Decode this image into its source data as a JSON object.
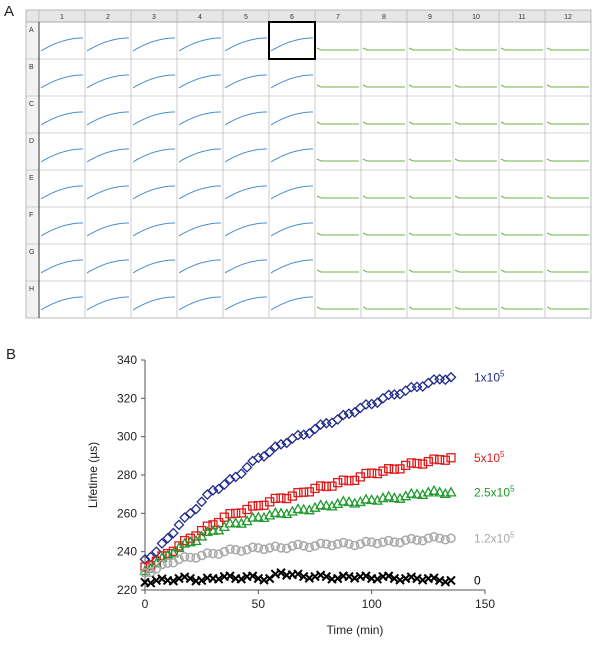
{
  "panel_labels": {
    "a": "A",
    "b": "B"
  },
  "plate": {
    "columns": [
      "1",
      "2",
      "3",
      "4",
      "5",
      "6",
      "7",
      "8",
      "9",
      "10",
      "11",
      "12"
    ],
    "rows": [
      "A",
      "B",
      "C",
      "D",
      "E",
      "F",
      "G",
      "H"
    ],
    "blue_columns_count": 6,
    "selected_well": "A6",
    "colors": {
      "blue_trace": "#4a8fd0",
      "green_trace": "#6db346",
      "header_bg": "#e6e6e6",
      "grid": "#aaaaaa"
    }
  },
  "chart_data": {
    "type": "scatter",
    "xlabel": "Time (min)",
    "ylabel": "Lifetime (µs)",
    "xlim": [
      0,
      150
    ],
    "ylim": [
      220,
      340
    ],
    "xticks": [
      0,
      50,
      100,
      150
    ],
    "yticks": [
      220,
      240,
      260,
      280,
      300,
      320,
      340
    ],
    "grid": false,
    "series": [
      {
        "name": "1x10^5",
        "label_base": "1x10",
        "label_exp": "5",
        "marker": "diamond",
        "color": "#1f2a8a",
        "x": [
          0,
          5,
          10,
          15,
          20,
          25,
          30,
          35,
          40,
          45,
          50,
          55,
          60,
          65,
          70,
          75,
          80,
          85,
          90,
          95,
          100,
          105,
          110,
          115,
          120,
          125,
          130,
          135
        ],
        "y": [
          236,
          240,
          247,
          254,
          260,
          266,
          272,
          275,
          279,
          284,
          289,
          292,
          296,
          299,
          301,
          304,
          307,
          309,
          312,
          315,
          317,
          320,
          322,
          324,
          326,
          328,
          330,
          331
        ]
      },
      {
        "name": "5x10^5",
        "label_base": "5x10",
        "label_exp": "5",
        "marker": "square",
        "color": "#dd1c1c",
        "x": [
          0,
          5,
          10,
          15,
          20,
          25,
          30,
          35,
          40,
          45,
          50,
          55,
          60,
          65,
          70,
          75,
          80,
          85,
          90,
          95,
          100,
          105,
          110,
          115,
          120,
          125,
          130,
          135
        ],
        "y": [
          232,
          235,
          239,
          243,
          247,
          251,
          254,
          258,
          260,
          262,
          264,
          266,
          268,
          269,
          271,
          273,
          274,
          276,
          277,
          279,
          281,
          282,
          283,
          285,
          286,
          287,
          288,
          289
        ]
      },
      {
        "name": "2.5x10^5",
        "label_base": "2.5x10",
        "label_exp": "5",
        "marker": "triangle",
        "color": "#1f9a2c",
        "x": [
          0,
          5,
          10,
          15,
          20,
          25,
          30,
          35,
          40,
          45,
          50,
          55,
          60,
          65,
          70,
          75,
          80,
          85,
          90,
          95,
          100,
          105,
          110,
          115,
          120,
          125,
          130,
          135
        ],
        "y": [
          230,
          234,
          238,
          242,
          245,
          248,
          251,
          253,
          255,
          256,
          258,
          259,
          260,
          261,
          262,
          263,
          264,
          265,
          266,
          266,
          267,
          268,
          268,
          269,
          270,
          271,
          271,
          271
        ]
      },
      {
        "name": "1.2x10^5",
        "label_base": "1.2x10",
        "label_exp": "5",
        "marker": "circle",
        "color": "#a8a8a8",
        "x": [
          0,
          5,
          10,
          15,
          20,
          25,
          30,
          35,
          40,
          45,
          50,
          55,
          60,
          65,
          70,
          75,
          80,
          85,
          90,
          95,
          100,
          105,
          110,
          115,
          120,
          125,
          130,
          135
        ],
        "y": [
          229,
          231,
          234,
          236,
          237,
          238,
          239,
          240,
          241,
          241,
          242,
          242,
          242,
          243,
          243,
          243,
          244,
          244,
          244,
          244,
          245,
          245,
          245,
          246,
          246,
          247,
          247,
          247
        ]
      },
      {
        "name": "0",
        "label_base": "0",
        "label_exp": "",
        "marker": "x",
        "color": "#000000",
        "x": [
          0,
          5,
          10,
          15,
          20,
          25,
          30,
          35,
          40,
          45,
          50,
          55,
          60,
          65,
          70,
          75,
          80,
          85,
          90,
          95,
          100,
          105,
          110,
          115,
          120,
          125,
          130,
          135
        ],
        "y": [
          224,
          225,
          225,
          226,
          226,
          225,
          226,
          227,
          226,
          227,
          226,
          226,
          229,
          228,
          227,
          227,
          227,
          226,
          227,
          227,
          226,
          227,
          226,
          226,
          226,
          226,
          225,
          225
        ]
      }
    ]
  }
}
